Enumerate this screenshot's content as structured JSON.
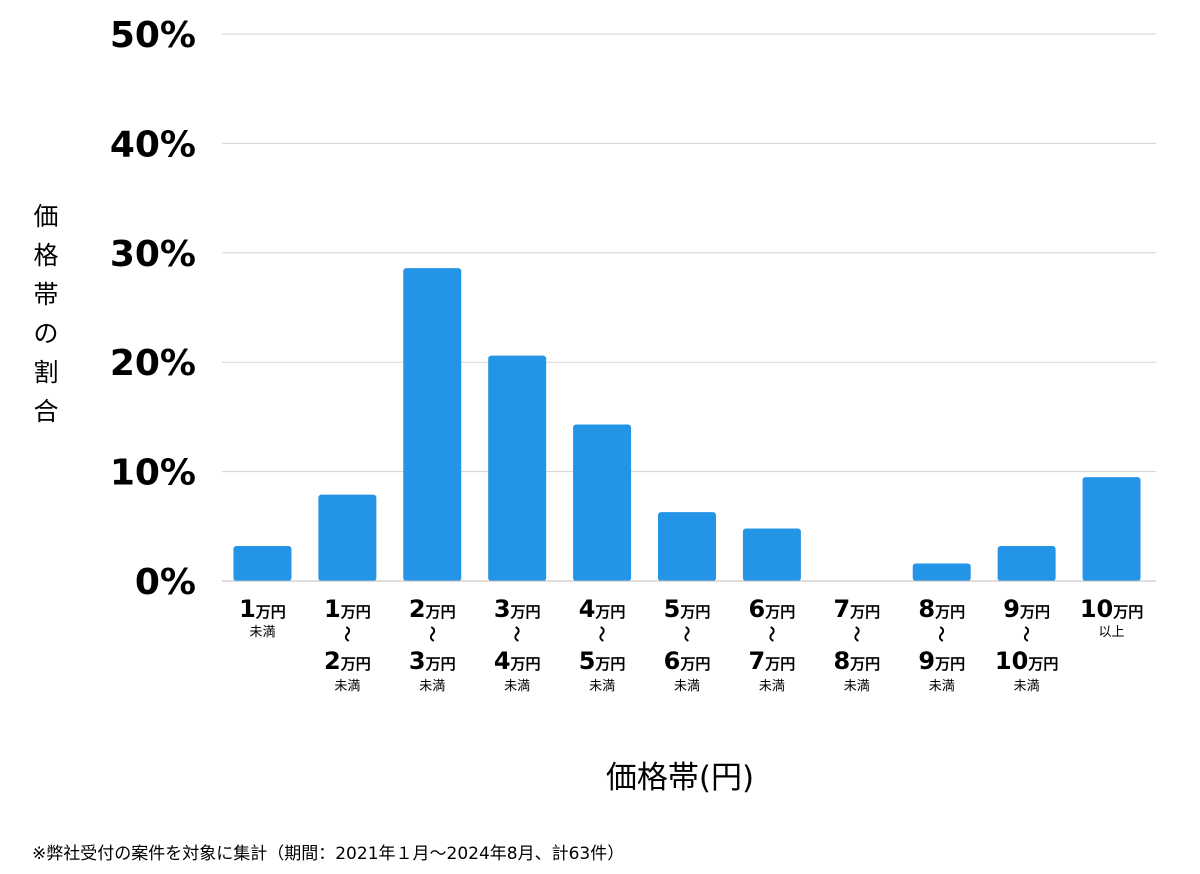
{
  "chart_data": {
    "type": "bar",
    "title": "",
    "xlabel": "価格帯(円)",
    "ylabel": "価格帯の割合",
    "ylim": [
      0,
      50
    ],
    "yticks": [
      "0%",
      "10%",
      "20%",
      "30%",
      "40%",
      "50%"
    ],
    "grid": true,
    "bar_color": "#2494e6",
    "grid_color": "#d3d3d3",
    "categories": [
      {
        "lines": [
          "1万円",
          "未満"
        ]
      },
      {
        "lines": [
          "1万円",
          "〜",
          "2万円",
          "未満"
        ]
      },
      {
        "lines": [
          "2万円",
          "〜",
          "3万円",
          "未満"
        ]
      },
      {
        "lines": [
          "3万円",
          "〜",
          "4万円",
          "未満"
        ]
      },
      {
        "lines": [
          "4万円",
          "〜",
          "5万円",
          "未満"
        ]
      },
      {
        "lines": [
          "5万円",
          "〜",
          "6万円",
          "未満"
        ]
      },
      {
        "lines": [
          "6万円",
          "〜",
          "7万円",
          "未満"
        ]
      },
      {
        "lines": [
          "7万円",
          "〜",
          "8万円",
          "未満"
        ]
      },
      {
        "lines": [
          "8万円",
          "〜",
          "9万円",
          "未満"
        ]
      },
      {
        "lines": [
          "9万円",
          "〜",
          "10万円",
          "未満"
        ]
      },
      {
        "lines": [
          "10万円",
          "以上"
        ]
      }
    ],
    "values": [
      3.2,
      7.9,
      28.6,
      20.6,
      14.3,
      6.3,
      4.8,
      0,
      1.6,
      3.2,
      9.5
    ]
  },
  "footnote": "※弊社受付の案件を対象に集計（期間：2021年１月〜2024年8月、計63件）"
}
